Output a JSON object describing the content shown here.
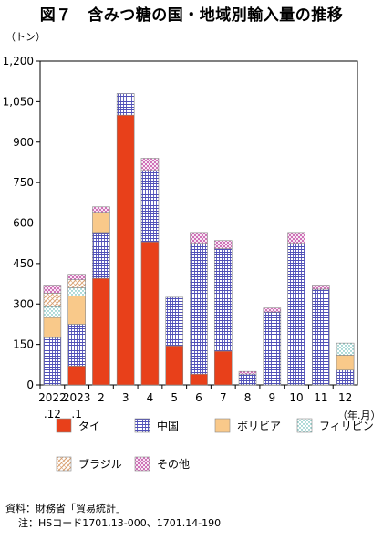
{
  "chart_data": {
    "type": "bar",
    "stacked": true,
    "title": "図７　含みつ糖の国・地域別輸入量の推移",
    "y_unit": "（トン）",
    "x_unit": "（年.月）",
    "ylim": [
      0,
      1200
    ],
    "yticks": [
      "0",
      "150",
      "300",
      "450",
      "600",
      "750",
      "900",
      "1,050",
      "1,200"
    ],
    "ytick_values": [
      0,
      150,
      300,
      450,
      600,
      750,
      900,
      1050,
      1200
    ],
    "categories": [
      {
        "line1": "2022",
        "line2": ".12"
      },
      {
        "line1": "2023",
        "line2": ".1"
      },
      {
        "line1": "2",
        "line2": ""
      },
      {
        "line1": "3",
        "line2": ""
      },
      {
        "line1": "4",
        "line2": ""
      },
      {
        "line1": "5",
        "line2": ""
      },
      {
        "line1": "6",
        "line2": ""
      },
      {
        "line1": "7",
        "line2": ""
      },
      {
        "line1": "8",
        "line2": ""
      },
      {
        "line1": "9",
        "line2": ""
      },
      {
        "line1": "10",
        "line2": ""
      },
      {
        "line1": "11",
        "line2": ""
      },
      {
        "line1": "12",
        "line2": ""
      }
    ],
    "series": [
      {
        "name": "タイ",
        "color": "#e8401a",
        "pattern": "solid",
        "values": [
          0,
          70,
          395,
          1000,
          530,
          145,
          40,
          125,
          0,
          0,
          0,
          0,
          0
        ]
      },
      {
        "name": "中国",
        "color": "#5050b8",
        "pattern": "grid",
        "values": [
          175,
          155,
          170,
          80,
          265,
          180,
          485,
          380,
          40,
          270,
          525,
          355,
          55
        ]
      },
      {
        "name": "ボリビア",
        "color": "#f9c98a",
        "pattern": "solid",
        "values": [
          75,
          105,
          75,
          0,
          0,
          0,
          0,
          0,
          0,
          0,
          0,
          0,
          55
        ]
      },
      {
        "name": "フィリピン",
        "color": "#3aa6a0",
        "pattern": "dots",
        "values": [
          40,
          30,
          0,
          0,
          0,
          0,
          0,
          0,
          0,
          0,
          0,
          0,
          45
        ]
      },
      {
        "name": "ブラジル",
        "color": "#d9a070",
        "pattern": "diag",
        "values": [
          50,
          30,
          0,
          0,
          0,
          0,
          0,
          0,
          0,
          0,
          0,
          0,
          0
        ]
      },
      {
        "name": "その他",
        "color": "#c040a0",
        "pattern": "cross",
        "values": [
          30,
          20,
          20,
          0,
          45,
          0,
          40,
          30,
          10,
          15,
          40,
          15,
          0
        ]
      }
    ],
    "grid": false,
    "legend": "bottom"
  },
  "notes": {
    "source": "資料：財務省「貿易統計」",
    "note": "注：HSコード1701.13-000、1701.14-190"
  }
}
